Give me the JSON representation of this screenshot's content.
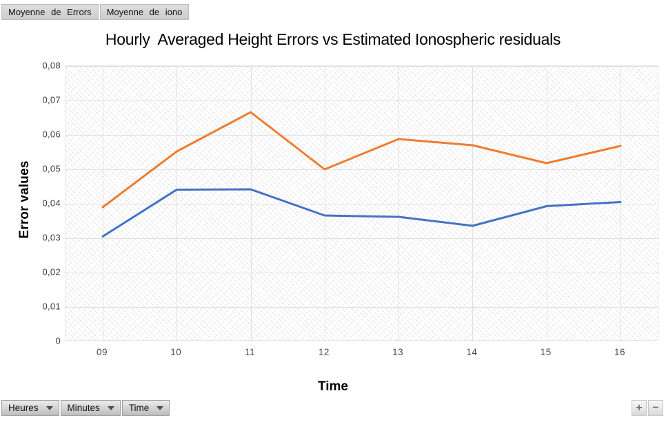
{
  "toolbar": {
    "series_buttons": [
      {
        "label": "Moyenne de Errors"
      },
      {
        "label": "Moyenne de iono"
      }
    ]
  },
  "chart_data": {
    "type": "line",
    "title": "Hourly  Averaged Height Errors vs Estimated Ionospheric residuals",
    "xlabel": "Time",
    "ylabel": "Error values",
    "categories": [
      "09",
      "10",
      "11",
      "12",
      "13",
      "14",
      "15",
      "16"
    ],
    "series": [
      {
        "name": "Moyenne de Errors",
        "color": "#4472c4",
        "values": [
          0.0305,
          0.0441,
          0.0442,
          0.0366,
          0.0362,
          0.0336,
          0.0393,
          0.0405
        ]
      },
      {
        "name": "Moyenne de iono",
        "color": "#ed7d31",
        "values": [
          0.039,
          0.0552,
          0.0666,
          0.05,
          0.0588,
          0.057,
          0.0518,
          0.0568
        ]
      }
    ],
    "ylim": [
      0,
      0.08
    ],
    "yticks": [
      "0",
      "0,01",
      "0,02",
      "0,03",
      "0,04",
      "0,05",
      "0,06",
      "0,07",
      "0,08"
    ],
    "grid": true,
    "legend_position": "none",
    "gridline_color": "#e0e0e0"
  },
  "controls": {
    "dropdowns": [
      {
        "label": "Heures"
      },
      {
        "label": "Minutes"
      },
      {
        "label": "Time"
      }
    ],
    "zoom_in_label": "+",
    "zoom_out_label": "−"
  }
}
